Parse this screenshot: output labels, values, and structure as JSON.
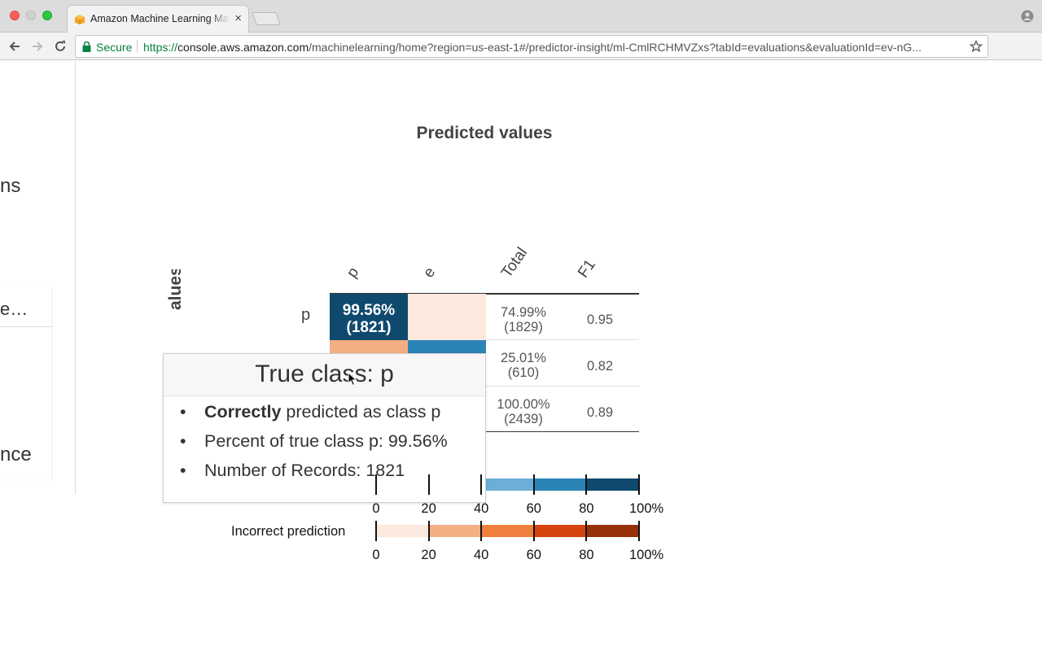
{
  "browser": {
    "tab_title": "Amazon Machine Learning Ma",
    "secure_label": "Secure",
    "url_scheme": "https://",
    "url_host": "console.aws.amazon.com",
    "url_path": "/machinelearning/home?region=us-east-1#/predictor-insight/ml-CmlRCHMVZxs?tabId=evaluations&evaluationId=ev-nG..."
  },
  "sidebar": {
    "fragments": [
      "ns",
      "e…",
      "nce"
    ]
  },
  "matrix": {
    "title": "Predicted values",
    "y_axis_title": "alues",
    "columns": [
      "p",
      "e",
      "Total",
      "F1"
    ],
    "row_label_p": "p",
    "cell_p_p": {
      "percent": "99.56%",
      "count": "(1821)"
    },
    "totals": [
      {
        "percent": "74.99%",
        "count": "(1829)",
        "f1": "0.95"
      },
      {
        "percent": "25.01%",
        "count": "(610)",
        "f1": "0.82"
      },
      {
        "percent": "100.00%",
        "count": "(2439)",
        "f1": "0.89"
      }
    ]
  },
  "legend": {
    "incorrect_label": "Incorrect prediction",
    "ticks": [
      "0",
      "20",
      "40",
      "60",
      "80",
      "100%"
    ],
    "correct_colors": [
      "#c6dbef",
      "#9ecae1",
      "#6baed6",
      "#2b84b6",
      "#0f4a6e"
    ],
    "incorrect_colors": [
      "#fce8dc",
      "#f4ae82",
      "#ef7f3c",
      "#d5440e",
      "#98300a"
    ]
  },
  "tooltip": {
    "title": "True class: p",
    "line1_bold": "Correctly",
    "line1_rest": " predicted as class p",
    "line2": "Percent of true class p: 99.56%",
    "line3": "Number of Records: 1821"
  },
  "colors": {
    "accent_correct": "#0f4a6e",
    "secure_green": "#0b8043"
  }
}
